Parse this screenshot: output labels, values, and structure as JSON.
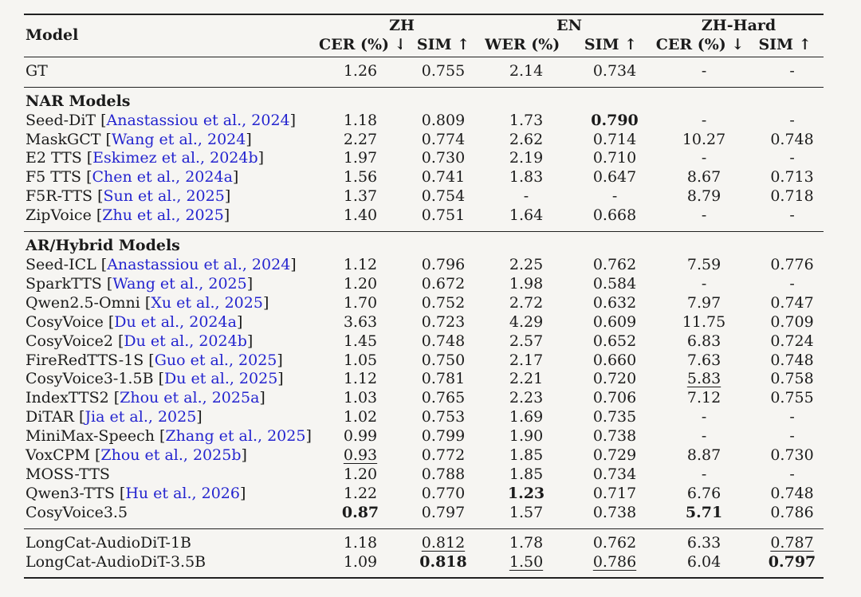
{
  "colors": {
    "citation_blue": "#2424cf",
    "rule": "#212121",
    "text": "#1b1b1b",
    "background": "#f6f5f2"
  },
  "table": {
    "header": {
      "model_label": "Model",
      "groups": [
        {
          "label": "ZH",
          "cols": [
            "CER (%) ↓",
            "SIM ↑"
          ]
        },
        {
          "label": "EN",
          "cols": [
            "WER (%) ↓",
            "SIM ↑"
          ]
        },
        {
          "label": "ZH-Hard",
          "cols": [
            "CER (%) ↓",
            "SIM ↑"
          ]
        }
      ]
    },
    "sections": [
      {
        "id": "gt",
        "title": null,
        "rows": [
          {
            "name": "GT",
            "cite": null,
            "values": [
              "1.26",
              "0.755",
              "2.14",
              "0.734",
              "-",
              "-"
            ],
            "bold": [],
            "underline": []
          }
        ]
      },
      {
        "id": "nar-models",
        "title": "NAR Models",
        "rows": [
          {
            "name": "Seed-DiT",
            "cite": "Anastassiou et al., 2024",
            "values": [
              "1.18",
              "0.809",
              "1.73",
              "0.790",
              "-",
              "-"
            ],
            "bold": [
              3
            ],
            "underline": []
          },
          {
            "name": "MaskGCT",
            "cite": "Wang et al., 2024",
            "values": [
              "2.27",
              "0.774",
              "2.62",
              "0.714",
              "10.27",
              "0.748"
            ],
            "bold": [],
            "underline": []
          },
          {
            "name": "E2 TTS",
            "cite": "Eskimez et al., 2024b",
            "values": [
              "1.97",
              "0.730",
              "2.19",
              "0.710",
              "-",
              "-"
            ],
            "bold": [],
            "underline": []
          },
          {
            "name": "F5 TTS",
            "cite": "Chen et al., 2024a",
            "values": [
              "1.56",
              "0.741",
              "1.83",
              "0.647",
              "8.67",
              "0.713"
            ],
            "bold": [],
            "underline": []
          },
          {
            "name": "F5R-TTS",
            "cite": "Sun et al., 2025",
            "values": [
              "1.37",
              "0.754",
              "-",
              "-",
              "8.79",
              "0.718"
            ],
            "bold": [],
            "underline": []
          },
          {
            "name": "ZipVoice",
            "cite": "Zhu et al., 2025",
            "values": [
              "1.40",
              "0.751",
              "1.64",
              "0.668",
              "-",
              "-"
            ],
            "bold": [],
            "underline": []
          }
        ]
      },
      {
        "id": "ar-hybrid-models",
        "title": "AR/Hybrid Models",
        "rows": [
          {
            "name": "Seed-ICL",
            "cite": "Anastassiou et al., 2024",
            "values": [
              "1.12",
              "0.796",
              "2.25",
              "0.762",
              "7.59",
              "0.776"
            ],
            "bold": [],
            "underline": []
          },
          {
            "name": "SparkTTS",
            "cite": "Wang et al., 2025",
            "values": [
              "1.20",
              "0.672",
              "1.98",
              "0.584",
              "-",
              "-"
            ],
            "bold": [],
            "underline": []
          },
          {
            "name": "Qwen2.5-Omni",
            "cite": "Xu et al., 2025",
            "values": [
              "1.70",
              "0.752",
              "2.72",
              "0.632",
              "7.97",
              "0.747"
            ],
            "bold": [],
            "underline": []
          },
          {
            "name": "CosyVoice",
            "cite": "Du et al., 2024a",
            "values": [
              "3.63",
              "0.723",
              "4.29",
              "0.609",
              "11.75",
              "0.709"
            ],
            "bold": [],
            "underline": []
          },
          {
            "name": "CosyVoice2",
            "cite": "Du et al., 2024b",
            "values": [
              "1.45",
              "0.748",
              "2.57",
              "0.652",
              "6.83",
              "0.724"
            ],
            "bold": [],
            "underline": []
          },
          {
            "name": "FireRedTTS-1S",
            "cite": "Guo et al., 2025",
            "values": [
              "1.05",
              "0.750",
              "2.17",
              "0.660",
              "7.63",
              "0.748"
            ],
            "bold": [],
            "underline": []
          },
          {
            "name": "CosyVoice3-1.5B",
            "cite": "Du et al., 2025",
            "values": [
              "1.12",
              "0.781",
              "2.21",
              "0.720",
              "5.83",
              "0.758"
            ],
            "bold": [],
            "underline": [
              4
            ]
          },
          {
            "name": "IndexTTS2",
            "cite": "Zhou et al., 2025a",
            "values": [
              "1.03",
              "0.765",
              "2.23",
              "0.706",
              "7.12",
              "0.755"
            ],
            "bold": [],
            "underline": []
          },
          {
            "name": "DiTAR",
            "cite": "Jia et al., 2025",
            "values": [
              "1.02",
              "0.753",
              "1.69",
              "0.735",
              "-",
              "-"
            ],
            "bold": [],
            "underline": []
          },
          {
            "name": "MiniMax-Speech",
            "cite": "Zhang et al., 2025",
            "values": [
              "0.99",
              "0.799",
              "1.90",
              "0.738",
              "-",
              "-"
            ],
            "bold": [],
            "underline": []
          },
          {
            "name": "VoxCPM",
            "cite": "Zhou et al., 2025b",
            "values": [
              "0.93",
              "0.772",
              "1.85",
              "0.729",
              "8.87",
              "0.730"
            ],
            "bold": [],
            "underline": [
              0
            ]
          },
          {
            "name": "MOSS-TTS",
            "cite": null,
            "values": [
              "1.20",
              "0.788",
              "1.85",
              "0.734",
              "-",
              "-"
            ],
            "bold": [],
            "underline": []
          },
          {
            "name": "Qwen3-TTS",
            "cite": "Hu et al., 2026",
            "values": [
              "1.22",
              "0.770",
              "1.23",
              "0.717",
              "6.76",
              "0.748"
            ],
            "bold": [
              2
            ],
            "underline": []
          },
          {
            "name": "CosyVoice3.5",
            "cite": null,
            "values": [
              "0.87",
              "0.797",
              "1.57",
              "0.738",
              "5.71",
              "0.786"
            ],
            "bold": [
              0,
              4
            ],
            "underline": []
          }
        ]
      },
      {
        "id": "longcat",
        "title": null,
        "rows": [
          {
            "name": "LongCat-AudioDiT-1B",
            "cite": null,
            "values": [
              "1.18",
              "0.812",
              "1.78",
              "0.762",
              "6.33",
              "0.787"
            ],
            "bold": [],
            "underline": [
              1,
              5
            ]
          },
          {
            "name": "LongCat-AudioDiT-3.5B",
            "cite": null,
            "values": [
              "1.09",
              "0.818",
              "1.50",
              "0.786",
              "6.04",
              "0.797"
            ],
            "bold": [
              1,
              5
            ],
            "underline": [
              2,
              3
            ]
          }
        ]
      }
    ],
    "metric_keys": [
      "zh-cer",
      "zh-sim",
      "en-wer",
      "en-sim",
      "zhhard-cer",
      "zhhard-sim"
    ]
  }
}
